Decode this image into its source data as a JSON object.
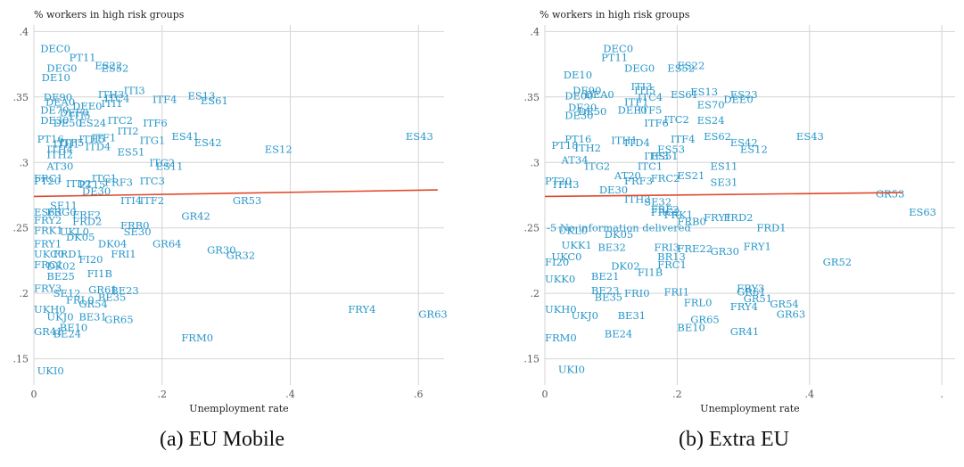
{
  "chart_data": [
    {
      "type": "scatter",
      "ylabel": "% workers in high risk groups",
      "xlabel": "Unemployment rate",
      "caption": "(a) EU Mobile",
      "xlim": [
        0,
        0.64
      ],
      "ylim": [
        0.13,
        0.405
      ],
      "xticks": [
        {
          "v": 0,
          "t": "0"
        },
        {
          "v": 0.2,
          "t": ".2"
        },
        {
          "v": 0.4,
          "t": ".4"
        },
        {
          "v": 0.6,
          "t": ".6"
        }
      ],
      "yticks": [
        {
          "v": 0.15,
          "t": ".15"
        },
        {
          "v": 0.2,
          "t": ".2"
        },
        {
          "v": 0.25,
          "t": ".25"
        },
        {
          "v": 0.3,
          "t": ".3"
        },
        {
          "v": 0.35,
          "t": ".35"
        },
        {
          "v": 0.4,
          "t": ".4"
        }
      ],
      "fit_line": [
        [
          0,
          0.274
        ],
        [
          0.63,
          0.279
        ]
      ],
      "points": [
        {
          "label": "DEC0",
          "x": 0.01,
          "y": 0.387
        },
        {
          "label": "PT11",
          "x": 0.055,
          "y": 0.38
        },
        {
          "label": "ES22",
          "x": 0.095,
          "y": 0.374
        },
        {
          "label": "ES52",
          "x": 0.105,
          "y": 0.372
        },
        {
          "label": "DEG0",
          "x": 0.02,
          "y": 0.372
        },
        {
          "label": "DE10",
          "x": 0.012,
          "y": 0.365
        },
        {
          "label": "ITI3",
          "x": 0.14,
          "y": 0.355
        },
        {
          "label": "ITH3",
          "x": 0.1,
          "y": 0.352
        },
        {
          "label": "ES13",
          "x": 0.24,
          "y": 0.351
        },
        {
          "label": "DE90",
          "x": 0.015,
          "y": 0.35
        },
        {
          "label": "ITC4",
          "x": 0.11,
          "y": 0.349
        },
        {
          "label": "ITF4",
          "x": 0.185,
          "y": 0.348
        },
        {
          "label": "ES61",
          "x": 0.26,
          "y": 0.347
        },
        {
          "label": "DEA0",
          "x": 0.018,
          "y": 0.346
        },
        {
          "label": "ITI1",
          "x": 0.105,
          "y": 0.345
        },
        {
          "label": "DEE0",
          "x": 0.06,
          "y": 0.343
        },
        {
          "label": "DE70",
          "x": 0.01,
          "y": 0.34
        },
        {
          "label": "DEF0",
          "x": 0.04,
          "y": 0.338
        },
        {
          "label": "ITI5",
          "x": 0.055,
          "y": 0.336
        },
        {
          "label": "ITC2",
          "x": 0.115,
          "y": 0.332
        },
        {
          "label": "DE30",
          "x": 0.01,
          "y": 0.332
        },
        {
          "label": "DE50",
          "x": 0.03,
          "y": 0.33
        },
        {
          "label": "ES24",
          "x": 0.07,
          "y": 0.33
        },
        {
          "label": "ITF6",
          "x": 0.17,
          "y": 0.33
        },
        {
          "label": "ITI2",
          "x": 0.13,
          "y": 0.324
        },
        {
          "label": "ES41",
          "x": 0.215,
          "y": 0.32
        },
        {
          "label": "ES43",
          "x": 0.58,
          "y": 0.32
        },
        {
          "label": "ITF1",
          "x": 0.09,
          "y": 0.319
        },
        {
          "label": "ITH5",
          "x": 0.07,
          "y": 0.318
        },
        {
          "label": "PT16",
          "x": 0.005,
          "y": 0.318
        },
        {
          "label": "ITG1",
          "x": 0.165,
          "y": 0.317
        },
        {
          "label": "ES42",
          "x": 0.25,
          "y": 0.315
        },
        {
          "label": "ITF5",
          "x": 0.04,
          "y": 0.315
        },
        {
          "label": "ITH1",
          "x": 0.03,
          "y": 0.314
        },
        {
          "label": "ITD4",
          "x": 0.08,
          "y": 0.312
        },
        {
          "label": "ITH4",
          "x": 0.02,
          "y": 0.31
        },
        {
          "label": "ES12",
          "x": 0.36,
          "y": 0.31
        },
        {
          "label": "ES51",
          "x": 0.13,
          "y": 0.308
        },
        {
          "label": "ITH2",
          "x": 0.02,
          "y": 0.306
        },
        {
          "label": "ITG2",
          "x": 0.18,
          "y": 0.3
        },
        {
          "label": "AT30",
          "x": 0.02,
          "y": 0.297
        },
        {
          "label": "ES11",
          "x": 0.19,
          "y": 0.297
        },
        {
          "label": "ITC3",
          "x": 0.165,
          "y": 0.286
        },
        {
          "label": "FRC1",
          "x": 0.0,
          "y": 0.288
        },
        {
          "label": "PT20",
          "x": 0.0,
          "y": 0.286
        },
        {
          "label": "FRF3",
          "x": 0.11,
          "y": 0.285
        },
        {
          "label": "ITC1",
          "x": 0.09,
          "y": 0.288
        },
        {
          "label": "ITD2",
          "x": 0.05,
          "y": 0.284
        },
        {
          "label": "PT15",
          "x": 0.07,
          "y": 0.283
        },
        {
          "label": "DE30",
          "x": 0.075,
          "y": 0.278
        },
        {
          "label": "ITF2",
          "x": 0.165,
          "y": 0.271
        },
        {
          "label": "ITI4",
          "x": 0.135,
          "y": 0.271
        },
        {
          "label": "GR53",
          "x": 0.31,
          "y": 0.271
        },
        {
          "label": "SE11",
          "x": 0.025,
          "y": 0.267
        },
        {
          "label": "FRF2",
          "x": 0.06,
          "y": 0.26
        },
        {
          "label": "ES63",
          "x": 0.0,
          "y": 0.262
        },
        {
          "label": "FRG0",
          "x": 0.02,
          "y": 0.262
        },
        {
          "label": "FRY2",
          "x": 0.0,
          "y": 0.256
        },
        {
          "label": "FRD2",
          "x": 0.06,
          "y": 0.255
        },
        {
          "label": "GR42",
          "x": 0.23,
          "y": 0.259
        },
        {
          "label": "FRB0",
          "x": 0.135,
          "y": 0.252
        },
        {
          "label": "FRK1",
          "x": 0.0,
          "y": 0.248
        },
        {
          "label": "SE30",
          "x": 0.14,
          "y": 0.247
        },
        {
          "label": "UKL0",
          "x": 0.04,
          "y": 0.247
        },
        {
          "label": "DK04",
          "x": 0.1,
          "y": 0.238
        },
        {
          "label": "GR64",
          "x": 0.185,
          "y": 0.238
        },
        {
          "label": "FRY1",
          "x": 0.0,
          "y": 0.238
        },
        {
          "label": "DK05",
          "x": 0.05,
          "y": 0.243
        },
        {
          "label": "UKC0",
          "x": 0.0,
          "y": 0.23
        },
        {
          "label": "FRI1",
          "x": 0.12,
          "y": 0.23
        },
        {
          "label": "GR30",
          "x": 0.27,
          "y": 0.233
        },
        {
          "label": "GR32",
          "x": 0.3,
          "y": 0.229
        },
        {
          "label": "FRD1",
          "x": 0.03,
          "y": 0.23
        },
        {
          "label": "FI20",
          "x": 0.07,
          "y": 0.226
        },
        {
          "label": "FRC1",
          "x": 0.0,
          "y": 0.222
        },
        {
          "label": "DK02",
          "x": 0.02,
          "y": 0.221
        },
        {
          "label": "FI1B",
          "x": 0.083,
          "y": 0.215
        },
        {
          "label": "BE25",
          "x": 0.02,
          "y": 0.213
        },
        {
          "label": "FRY3",
          "x": 0.0,
          "y": 0.204
        },
        {
          "label": "GR61",
          "x": 0.085,
          "y": 0.203
        },
        {
          "label": "BE23",
          "x": 0.12,
          "y": 0.202
        },
        {
          "label": "BE35",
          "x": 0.1,
          "y": 0.197
        },
        {
          "label": "SE12",
          "x": 0.03,
          "y": 0.2
        },
        {
          "label": "FRL0",
          "x": 0.05,
          "y": 0.195
        },
        {
          "label": "GR54",
          "x": 0.07,
          "y": 0.192
        },
        {
          "label": "UKH0",
          "x": 0.0,
          "y": 0.188
        },
        {
          "label": "UKJ0",
          "x": 0.02,
          "y": 0.182
        },
        {
          "label": "BE31",
          "x": 0.07,
          "y": 0.182
        },
        {
          "label": "GR65",
          "x": 0.11,
          "y": 0.18
        },
        {
          "label": "FRY4",
          "x": 0.49,
          "y": 0.188
        },
        {
          "label": "GR63",
          "x": 0.6,
          "y": 0.184
        },
        {
          "label": "BE10",
          "x": 0.04,
          "y": 0.174
        },
        {
          "label": "GR41",
          "x": 0.0,
          "y": 0.171
        },
        {
          "label": "BE24",
          "x": 0.03,
          "y": 0.169
        },
        {
          "label": "FRM0",
          "x": 0.23,
          "y": 0.166
        },
        {
          "label": "UKI0",
          "x": 0.005,
          "y": 0.141
        }
      ]
    },
    {
      "type": "scatter",
      "ylabel": "% workers in high risk groups",
      "xlabel": "Unemployment rate",
      "caption": "(b) Extra EU",
      "xlim": [
        0,
        0.62
      ],
      "ylim": [
        0.13,
        0.405
      ],
      "xticks": [
        {
          "v": 0,
          "t": "0"
        },
        {
          "v": 0.2,
          "t": ".2"
        },
        {
          "v": 0.4,
          "t": ".4"
        },
        {
          "v": 0.6,
          "t": "."
        }
      ],
      "yticks": [
        {
          "v": 0.15,
          "t": ".15"
        },
        {
          "v": 0.2,
          "t": ".2"
        },
        {
          "v": 0.25,
          "t": ".25"
        },
        {
          "v": 0.3,
          "t": ".3"
        },
        {
          "v": 0.35,
          "t": ".35"
        },
        {
          "v": 0.4,
          "t": ".4"
        }
      ],
      "fit_line": [
        [
          0,
          0.274
        ],
        [
          0.54,
          0.277
        ]
      ],
      "annotation": "-5 No information delivered",
      "points": [
        {
          "label": "DEC0",
          "x": 0.088,
          "y": 0.387
        },
        {
          "label": "PT11",
          "x": 0.085,
          "y": 0.38
        },
        {
          "label": "ES22",
          "x": 0.2,
          "y": 0.374
        },
        {
          "label": "ES52",
          "x": 0.185,
          "y": 0.372
        },
        {
          "label": "DEG0",
          "x": 0.12,
          "y": 0.372
        },
        {
          "label": "DE10",
          "x": 0.028,
          "y": 0.367
        },
        {
          "label": "ITI3",
          "x": 0.13,
          "y": 0.358
        },
        {
          "label": "DE90",
          "x": 0.042,
          "y": 0.355
        },
        {
          "label": "ITI5",
          "x": 0.135,
          "y": 0.355
        },
        {
          "label": "ES13",
          "x": 0.22,
          "y": 0.354
        },
        {
          "label": "ES61",
          "x": 0.19,
          "y": 0.352
        },
        {
          "label": "ES23",
          "x": 0.28,
          "y": 0.352
        },
        {
          "label": "DEA0",
          "x": 0.06,
          "y": 0.352
        },
        {
          "label": "DE00",
          "x": 0.03,
          "y": 0.351
        },
        {
          "label": "ITC4",
          "x": 0.14,
          "y": 0.35
        },
        {
          "label": "DEE0",
          "x": 0.27,
          "y": 0.348
        },
        {
          "label": "ITF1",
          "x": 0.12,
          "y": 0.346
        },
        {
          "label": "ES70",
          "x": 0.23,
          "y": 0.344
        },
        {
          "label": "DE20",
          "x": 0.035,
          "y": 0.342
        },
        {
          "label": "DEF0",
          "x": 0.11,
          "y": 0.34
        },
        {
          "label": "ITF5",
          "x": 0.14,
          "y": 0.34
        },
        {
          "label": "DE50",
          "x": 0.05,
          "y": 0.339
        },
        {
          "label": "DE30",
          "x": 0.03,
          "y": 0.336
        },
        {
          "label": "ITC2",
          "x": 0.18,
          "y": 0.333
        },
        {
          "label": "ES24",
          "x": 0.23,
          "y": 0.332
        },
        {
          "label": "ITF6",
          "x": 0.15,
          "y": 0.33
        },
        {
          "label": "ES43",
          "x": 0.38,
          "y": 0.32
        },
        {
          "label": "ES62",
          "x": 0.24,
          "y": 0.32
        },
        {
          "label": "PT16",
          "x": 0.03,
          "y": 0.318
        },
        {
          "label": "ITH1",
          "x": 0.1,
          "y": 0.317
        },
        {
          "label": "ITF4",
          "x": 0.19,
          "y": 0.318
        },
        {
          "label": "ITD4",
          "x": 0.12,
          "y": 0.315
        },
        {
          "label": "ES42",
          "x": 0.28,
          "y": 0.315
        },
        {
          "label": "PT18",
          "x": 0.01,
          "y": 0.313
        },
        {
          "label": "ITH2",
          "x": 0.045,
          "y": 0.311
        },
        {
          "label": "ES12",
          "x": 0.295,
          "y": 0.31
        },
        {
          "label": "ES53",
          "x": 0.17,
          "y": 0.31
        },
        {
          "label": "ITF3",
          "x": 0.15,
          "y": 0.305
        },
        {
          "label": "ES51",
          "x": 0.16,
          "y": 0.305
        },
        {
          "label": "AT34",
          "x": 0.025,
          "y": 0.302
        },
        {
          "label": "ITG2",
          "x": 0.06,
          "y": 0.297
        },
        {
          "label": "ITC1",
          "x": 0.14,
          "y": 0.297
        },
        {
          "label": "ES11",
          "x": 0.25,
          "y": 0.297
        },
        {
          "label": "AT20",
          "x": 0.105,
          "y": 0.29
        },
        {
          "label": "FRC2",
          "x": 0.16,
          "y": 0.288
        },
        {
          "label": "ES21",
          "x": 0.2,
          "y": 0.29
        },
        {
          "label": "PT20",
          "x": 0.0,
          "y": 0.286
        },
        {
          "label": "FRF3",
          "x": 0.12,
          "y": 0.286
        },
        {
          "label": "SE31",
          "x": 0.25,
          "y": 0.285
        },
        {
          "label": "ITH3",
          "x": 0.012,
          "y": 0.283
        },
        {
          "label": "DE30",
          "x": 0.082,
          "y": 0.279
        },
        {
          "label": "ITH3",
          "x": 0.12,
          "y": 0.272
        },
        {
          "label": "GR53",
          "x": 0.5,
          "y": 0.276
        },
        {
          "label": "SE32",
          "x": 0.15,
          "y": 0.27
        },
        {
          "label": "ES63",
          "x": 0.55,
          "y": 0.262
        },
        {
          "label": "FRG2",
          "x": 0.16,
          "y": 0.262
        },
        {
          "label": "FRF2",
          "x": 0.16,
          "y": 0.264
        },
        {
          "label": "FRK1",
          "x": 0.18,
          "y": 0.26
        },
        {
          "label": "FRY1",
          "x": 0.24,
          "y": 0.258
        },
        {
          "label": "FRD2",
          "x": 0.27,
          "y": 0.258
        },
        {
          "label": "FRB0",
          "x": 0.2,
          "y": 0.255
        },
        {
          "label": "FRD1",
          "x": 0.32,
          "y": 0.25
        },
        {
          "label": "UKL0",
          "x": 0.02,
          "y": 0.248
        },
        {
          "label": "DK05",
          "x": 0.09,
          "y": 0.245
        },
        {
          "label": "UKK1",
          "x": 0.025,
          "y": 0.237
        },
        {
          "label": "BE32",
          "x": 0.08,
          "y": 0.235
        },
        {
          "label": "FRI3",
          "x": 0.165,
          "y": 0.235
        },
        {
          "label": "FRE22",
          "x": 0.2,
          "y": 0.234
        },
        {
          "label": "FRY1",
          "x": 0.3,
          "y": 0.236
        },
        {
          "label": "GR30",
          "x": 0.25,
          "y": 0.232
        },
        {
          "label": "UKC0",
          "x": 0.01,
          "y": 0.228
        },
        {
          "label": "BR13",
          "x": 0.17,
          "y": 0.228
        },
        {
          "label": "FI20",
          "x": 0.0,
          "y": 0.224
        },
        {
          "label": "DK02",
          "x": 0.1,
          "y": 0.221
        },
        {
          "label": "FRC1",
          "x": 0.17,
          "y": 0.222
        },
        {
          "label": "GR52",
          "x": 0.42,
          "y": 0.224
        },
        {
          "label": "FI1B",
          "x": 0.14,
          "y": 0.216
        },
        {
          "label": "UKK0",
          "x": 0.0,
          "y": 0.211
        },
        {
          "label": "BE21",
          "x": 0.07,
          "y": 0.213
        },
        {
          "label": "FRY3",
          "x": 0.29,
          "y": 0.204
        },
        {
          "label": "GR61",
          "x": 0.29,
          "y": 0.201
        },
        {
          "label": "BE23",
          "x": 0.07,
          "y": 0.202
        },
        {
          "label": "FRI1",
          "x": 0.18,
          "y": 0.201
        },
        {
          "label": "FRI0",
          "x": 0.12,
          "y": 0.2
        },
        {
          "label": "BE35",
          "x": 0.075,
          "y": 0.197
        },
        {
          "label": "GR51",
          "x": 0.3,
          "y": 0.196
        },
        {
          "label": "FRL0",
          "x": 0.21,
          "y": 0.193
        },
        {
          "label": "GR54",
          "x": 0.34,
          "y": 0.192
        },
        {
          "label": "FRY4",
          "x": 0.28,
          "y": 0.19
        },
        {
          "label": "UKH0",
          "x": 0.0,
          "y": 0.188
        },
        {
          "label": "GR63",
          "x": 0.35,
          "y": 0.184
        },
        {
          "label": "UKJ0",
          "x": 0.04,
          "y": 0.183
        },
        {
          "label": "BE31",
          "x": 0.11,
          "y": 0.183
        },
        {
          "label": "GR65",
          "x": 0.22,
          "y": 0.18
        },
        {
          "label": "BE10",
          "x": 0.2,
          "y": 0.174
        },
        {
          "label": "GR41",
          "x": 0.28,
          "y": 0.171
        },
        {
          "label": "BE24",
          "x": 0.09,
          "y": 0.169
        },
        {
          "label": "FRM0",
          "x": 0.0,
          "y": 0.166
        },
        {
          "label": "UKI0",
          "x": 0.02,
          "y": 0.142
        }
      ]
    }
  ]
}
